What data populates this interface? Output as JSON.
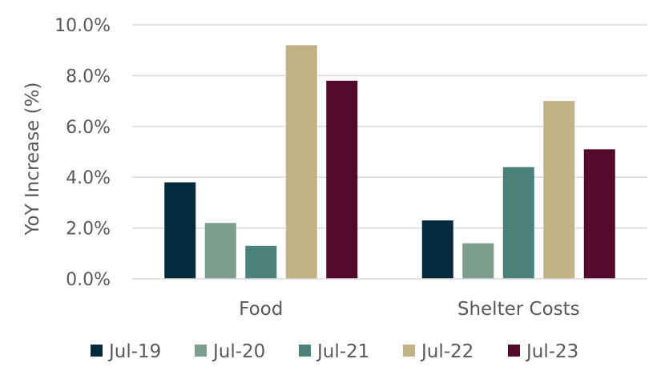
{
  "chart_data": {
    "type": "bar",
    "title": "",
    "xlabel": "",
    "ylabel": "YoY Increase (%)",
    "ylim": [
      0,
      10
    ],
    "yticks": [
      "0.0%",
      "2.0%",
      "4.0%",
      "6.0%",
      "8.0%",
      "10.0%"
    ],
    "ytick_values": [
      0,
      2,
      4,
      6,
      8,
      10
    ],
    "grid": true,
    "legend_position": "bottom",
    "categories": [
      "Food",
      "Shelter Costs"
    ],
    "series": [
      {
        "name": "Jul-19",
        "color": "#062a3d",
        "values": [
          3.8,
          2.3
        ]
      },
      {
        "name": "Jul-20",
        "color": "#7d9e8e",
        "values": [
          2.2,
          1.4
        ]
      },
      {
        "name": "Jul-21",
        "color": "#4a8279",
        "values": [
          1.3,
          4.4
        ]
      },
      {
        "name": "Jul-22",
        "color": "#c0b386",
        "values": [
          9.2,
          7.0
        ]
      },
      {
        "name": "Jul-23",
        "color": "#530a2a",
        "values": [
          7.8,
          5.1
        ]
      }
    ]
  }
}
